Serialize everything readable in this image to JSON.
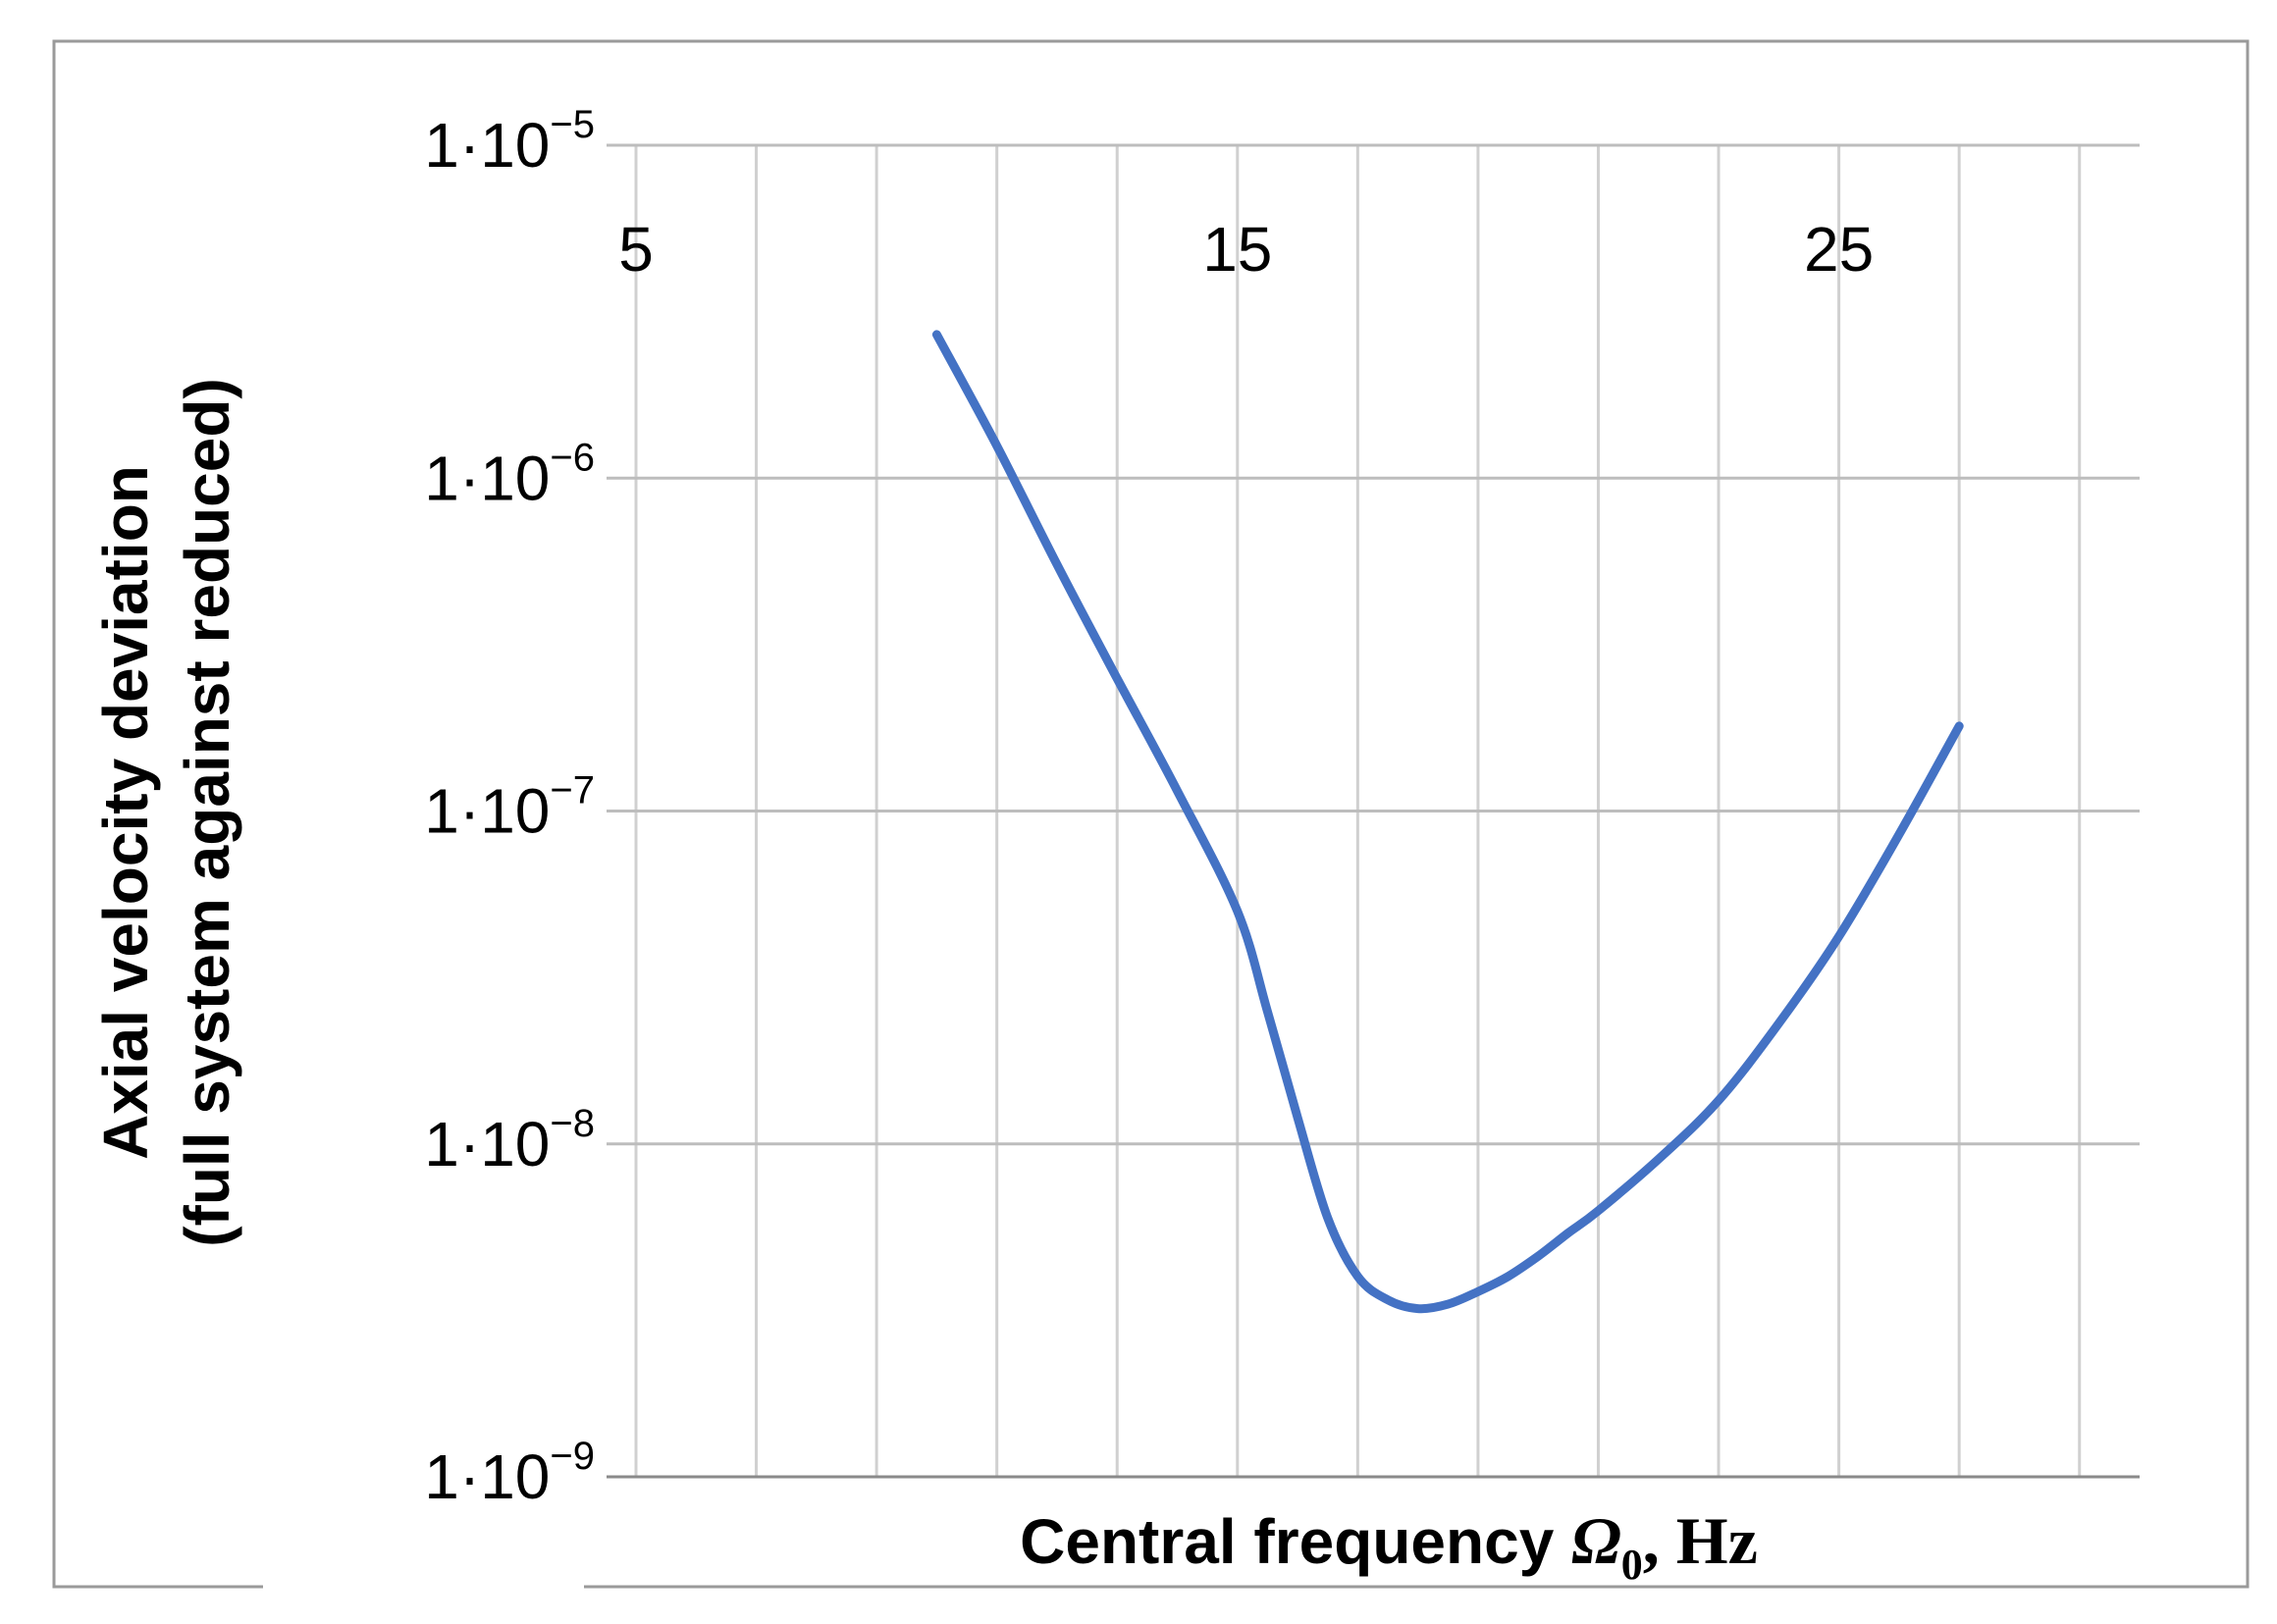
{
  "chart_data": {
    "type": "line",
    "title": "",
    "xlabel_text": "Central frequency ",
    "xlabel_symbol": "Ω",
    "xlabel_subscript": "0",
    "xlabel_unit": ", Hz",
    "ylabel_line1": "Axial velocity deviation",
    "ylabel_line2": "(full system against reduced)",
    "xlim": [
      5,
      30
    ],
    "yscale": "log",
    "ylim": [
      1e-09,
      1e-05
    ],
    "x_ticks": [
      5,
      15,
      25
    ],
    "x_tick_labels": [
      "5",
      "15",
      "25"
    ],
    "x_grid_step": 2,
    "y_ticks": [
      1e-09,
      1e-08,
      1e-07,
      1e-06,
      1e-05
    ],
    "y_tick_labels": [
      {
        "base": "1·10",
        "exp": "−9"
      },
      {
        "base": "1·10",
        "exp": "−8"
      },
      {
        "base": "1·10",
        "exp": "−7"
      },
      {
        "base": "1·10",
        "exp": "−6"
      },
      {
        "base": "1·10",
        "exp": "−5"
      }
    ],
    "grid": true,
    "legend": "none",
    "series": [
      {
        "color": "#4472C4",
        "x": [
          10,
          11,
          12,
          13,
          14,
          15,
          15.5,
          16,
          16.5,
          17,
          17.5,
          18,
          18.5,
          19,
          19.5,
          20,
          20.5,
          21,
          22,
          23,
          24,
          25,
          26,
          27
        ],
        "y": [
          2.7e-06,
          1.25e-06,
          5.5e-07,
          2.5e-07,
          1.15e-07,
          5e-08,
          2.5e-08,
          1.2e-08,
          6e-09,
          4e-09,
          3.4e-09,
          3.2e-09,
          3.3e-09,
          3.6e-09,
          4e-09,
          4.6e-09,
          5.4e-09,
          6.3e-09,
          9e-09,
          1.35e-08,
          2.3e-08,
          4.2e-08,
          8.5e-08,
          1.8e-07
        ]
      }
    ]
  }
}
